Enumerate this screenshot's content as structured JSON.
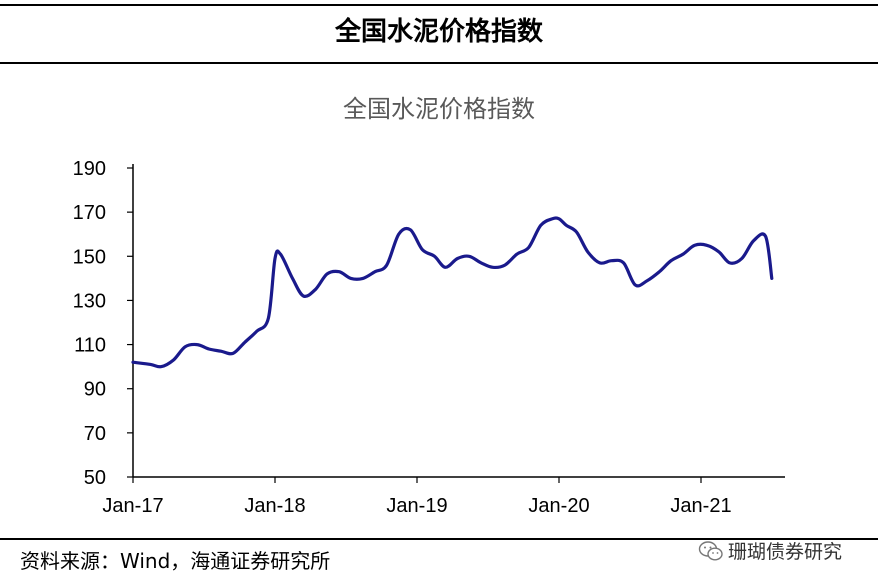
{
  "header": {
    "title": "全国水泥价格指数"
  },
  "footer": {
    "source": "资料来源：Wind，海通证券研究所"
  },
  "watermark": {
    "text": "珊瑚债券研究",
    "icon": "wechat-icon"
  },
  "colors": {
    "line": "#1a1a8c",
    "axis": "#000000",
    "title": "#595959"
  },
  "chart_data": {
    "type": "line",
    "title": "全国水泥价格指数",
    "xlabel": "",
    "ylabel": "",
    "ylim": [
      50,
      190
    ],
    "yticks": [
      50,
      70,
      90,
      110,
      130,
      150,
      170,
      190
    ],
    "xticks": [
      "Jan-17",
      "Jan-18",
      "Jan-19",
      "Jan-20",
      "Jan-21"
    ],
    "grid": false,
    "legend": "none",
    "series": [
      {
        "x": [
          "2017-01-01",
          "2017-02-15",
          "2017-03-15",
          "2017-04-15",
          "2017-05-15",
          "2017-06-15",
          "2017-07-15",
          "2017-08-15",
          "2017-09-15",
          "2017-10-15",
          "2017-11-15",
          "2017-12-15",
          "2018-01-01",
          "2018-01-15",
          "2018-02-15",
          "2018-03-15",
          "2018-04-15",
          "2018-05-15",
          "2018-06-15",
          "2018-07-15",
          "2018-08-15",
          "2018-09-15",
          "2018-10-15",
          "2018-11-15",
          "2018-12-15",
          "2019-01-15",
          "2019-02-15",
          "2019-03-15",
          "2019-04-15",
          "2019-05-15",
          "2019-06-15",
          "2019-07-15",
          "2019-08-15",
          "2019-09-15",
          "2019-10-15",
          "2019-11-15",
          "2019-12-15",
          "2020-01-01",
          "2020-01-20",
          "2020-02-15",
          "2020-03-15",
          "2020-04-15",
          "2020-05-15",
          "2020-06-15",
          "2020-07-15",
          "2020-08-15",
          "2020-09-15",
          "2020-10-15",
          "2020-11-15",
          "2020-12-15",
          "2021-01-15",
          "2021-02-15",
          "2021-03-15",
          "2021-04-15",
          "2021-05-15",
          "2021-06-15",
          "2021-07-01"
        ],
        "values": [
          102,
          101,
          100,
          103,
          109,
          110,
          108,
          107,
          106,
          111,
          116,
          122,
          149,
          151,
          140,
          132,
          135,
          142,
          143,
          140,
          140,
          143,
          146,
          160,
          162,
          153,
          150,
          145,
          149,
          150,
          147,
          145,
          146,
          151,
          154,
          164,
          167,
          167,
          164,
          161,
          152,
          147,
          148,
          147,
          137,
          139,
          143,
          148,
          151,
          155,
          155,
          152,
          147,
          149,
          157,
          159,
          140
        ]
      }
    ]
  }
}
